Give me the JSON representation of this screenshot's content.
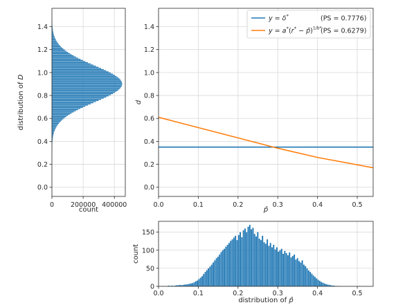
{
  "chart_data": [
    {
      "id": "main",
      "type": "line",
      "xlabel": "p̂",
      "ylabel": "d",
      "xlim": [
        0,
        0.54
      ],
      "ylim": [
        -0.08,
        1.56
      ],
      "xticks": [
        0,
        0.1,
        0.2,
        0.3,
        0.4,
        0.5
      ],
      "xtick_labels": [
        "0.0",
        "0.1",
        "0.2",
        "0.3",
        "0.4",
        "0.5"
      ],
      "yticks": [
        0,
        0.2,
        0.4,
        0.6,
        0.8,
        1.0,
        1.2,
        1.4
      ],
      "ytick_labels": [
        "0.0",
        "0.2",
        "0.4",
        "0.6",
        "0.8",
        "1.0",
        "1.2",
        "1.4"
      ],
      "grid": true,
      "legend_position": "top-right",
      "series": [
        {
          "name": "y = δ*",
          "ps": "(PS = 0.7776)",
          "color": "#1f77b4",
          "x": [
            0,
            0.54
          ],
          "y": [
            0.35,
            0.35
          ]
        },
        {
          "name": "y = a*(r* − p̂)^(1/b*)",
          "ps": "(PS = 0.6279)",
          "color": "#ff7f0e",
          "x": [
            0,
            0.1,
            0.2,
            0.3,
            0.4,
            0.54
          ],
          "y": [
            0.61,
            0.52,
            0.43,
            0.34,
            0.26,
            0.17
          ]
        }
      ]
    },
    {
      "id": "left-hist",
      "type": "bar",
      "orientation": "horizontal",
      "xlabel": "count",
      "ylabel": "distribution of D",
      "xlim": [
        0,
        470000
      ],
      "ylim": [
        -0.08,
        1.56
      ],
      "xticks": [
        0,
        200000,
        400000
      ],
      "xtick_labels": [
        "0",
        "200000",
        "400000"
      ],
      "yticks": [
        0,
        0.2,
        0.4,
        0.6,
        0.8,
        1.0,
        1.2,
        1.4
      ],
      "ytick_labels": [
        "0.0",
        "0.2",
        "0.4",
        "0.6",
        "0.8",
        "1.0",
        "1.2",
        "1.4"
      ],
      "color": "#1f77b4",
      "distribution": {
        "shape": "normal",
        "mean": 0.9,
        "sd": 0.16,
        "peak_count": 450000,
        "range": [
          0.3,
          1.45
        ],
        "bin_width": 0.01
      }
    },
    {
      "id": "bottom-hist",
      "type": "bar",
      "xlabel": "distribution of p̂",
      "ylabel": "count",
      "xlim": [
        0,
        0.54
      ],
      "ylim": [
        0,
        180
      ],
      "xticks": [
        0,
        0.1,
        0.2,
        0.3,
        0.4,
        0.5
      ],
      "xtick_labels": [
        "0.0",
        "0.1",
        "0.2",
        "0.3",
        "0.4",
        "0.5"
      ],
      "yticks": [
        0,
        50,
        100,
        150
      ],
      "ytick_labels": [
        "0",
        "50",
        "100",
        "150"
      ],
      "color": "#1f77b4",
      "bin_width": 0.004,
      "bins_start": 0.0,
      "values": [
        0,
        0,
        1,
        0,
        0,
        1,
        2,
        1,
        2,
        1,
        2,
        3,
        3,
        4,
        3,
        4,
        5,
        5,
        6,
        7,
        8,
        9,
        11,
        14,
        16,
        20,
        24,
        28,
        34,
        40,
        45,
        50,
        55,
        60,
        66,
        72,
        78,
        82,
        88,
        95,
        100,
        104,
        110,
        115,
        120,
        126,
        130,
        135,
        140,
        128,
        142,
        150,
        136,
        155,
        160,
        150,
        165,
        170,
        158,
        162,
        145,
        138,
        150,
        132,
        128,
        140,
        122,
        118,
        130,
        112,
        120,
        108,
        115,
        102,
        108,
        96,
        100,
        104,
        90,
        98,
        92,
        86,
        94,
        80,
        84,
        88,
        74,
        78,
        70,
        66,
        72,
        60,
        56,
        50,
        44,
        40,
        35,
        30,
        26,
        22,
        18,
        15,
        12,
        10,
        8,
        6,
        5,
        4,
        3,
        2,
        2,
        1,
        1,
        1,
        0,
        0,
        0,
        0,
        0,
        0,
        0,
        0,
        0,
        0,
        0,
        0,
        1,
        0,
        0,
        0,
        0,
        0
      ]
    }
  ]
}
